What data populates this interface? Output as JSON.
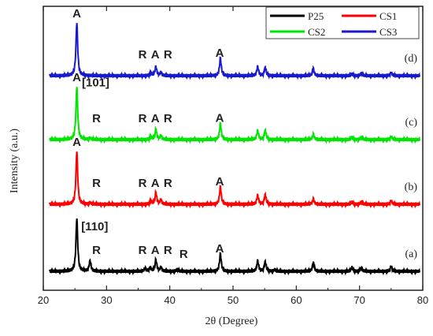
{
  "chart_data": {
    "type": "line",
    "xlabel": "2θ (Degree)",
    "ylabel": "Intensity (a.u.)",
    "xlim": [
      20,
      80
    ],
    "xticks": [
      20,
      30,
      40,
      50,
      60,
      70,
      80
    ],
    "grid": false,
    "legend_position": "top-right",
    "series": [
      {
        "name": "P25",
        "curve_label": "(a)",
        "color": "#000000",
        "peaks": [
          [
            25.3,
            1.0
          ],
          [
            27.4,
            0.2
          ],
          [
            36.1,
            0.06
          ],
          [
            36.9,
            0.07
          ],
          [
            37.8,
            0.22
          ],
          [
            38.6,
            0.07
          ],
          [
            41.2,
            0.04
          ],
          [
            48.0,
            0.33
          ],
          [
            53.9,
            0.2
          ],
          [
            55.1,
            0.18
          ],
          [
            56.6,
            0.03
          ],
          [
            62.7,
            0.16
          ],
          [
            68.8,
            0.07
          ],
          [
            70.3,
            0.07
          ],
          [
            75.0,
            0.1
          ]
        ]
      },
      {
        "name": "CS1",
        "curve_label": "(b)",
        "color": "#ff0000",
        "peaks": [
          [
            25.3,
            1.0
          ],
          [
            27.4,
            0.03
          ],
          [
            37.0,
            0.07
          ],
          [
            37.8,
            0.22
          ],
          [
            38.6,
            0.08
          ],
          [
            48.0,
            0.33
          ],
          [
            53.9,
            0.17
          ],
          [
            55.1,
            0.18
          ],
          [
            62.7,
            0.1
          ],
          [
            68.8,
            0.04
          ],
          [
            70.3,
            0.05
          ],
          [
            75.0,
            0.07
          ]
        ]
      },
      {
        "name": "CS2",
        "curve_label": "(c)",
        "color": "#00e600",
        "peaks": [
          [
            25.3,
            1.0
          ],
          [
            27.4,
            0.03
          ],
          [
            37.0,
            0.06
          ],
          [
            37.8,
            0.19
          ],
          [
            38.6,
            0.07
          ],
          [
            48.0,
            0.3
          ],
          [
            53.9,
            0.17
          ],
          [
            55.1,
            0.17
          ],
          [
            62.7,
            0.1
          ],
          [
            68.8,
            0.04
          ],
          [
            70.3,
            0.05
          ],
          [
            75.0,
            0.06
          ]
        ]
      },
      {
        "name": "CS3",
        "curve_label": "(d)",
        "color": "#1a1acd",
        "peaks": [
          [
            25.3,
            1.0
          ],
          [
            37.0,
            0.06
          ],
          [
            37.8,
            0.17
          ],
          [
            38.6,
            0.06
          ],
          [
            48.0,
            0.33
          ],
          [
            53.9,
            0.17
          ],
          [
            55.1,
            0.15
          ],
          [
            62.7,
            0.13
          ],
          [
            68.8,
            0.03
          ],
          [
            70.3,
            0.05
          ],
          [
            75.0,
            0.06
          ]
        ]
      }
    ],
    "annotations": [
      {
        "series": "CS3",
        "text": "A",
        "x": 25.3
      },
      {
        "series": "CS3",
        "text": "[101]",
        "x": 27.5
      },
      {
        "series": "CS3",
        "text": "R",
        "x": 35.7
      },
      {
        "series": "CS3",
        "text": "A",
        "x": 37.7
      },
      {
        "series": "CS3",
        "text": "R",
        "x": 39.7
      },
      {
        "series": "CS3",
        "text": "A",
        "x": 47.9
      },
      {
        "series": "CS2",
        "text": "A",
        "x": 25.3
      },
      {
        "series": "CS2",
        "text": "R",
        "x": 28.4
      },
      {
        "series": "CS2",
        "text": "R",
        "x": 35.7
      },
      {
        "series": "CS2",
        "text": "A",
        "x": 37.7
      },
      {
        "series": "CS2",
        "text": "R",
        "x": 39.7
      },
      {
        "series": "CS2",
        "text": "A",
        "x": 47.9
      },
      {
        "series": "CS1",
        "text": "A",
        "x": 25.3
      },
      {
        "series": "CS1",
        "text": "R",
        "x": 28.4
      },
      {
        "series": "CS1",
        "text": "R",
        "x": 35.7
      },
      {
        "series": "CS1",
        "text": "A",
        "x": 37.7
      },
      {
        "series": "CS1",
        "text": "R",
        "x": 39.7
      },
      {
        "series": "CS1",
        "text": "A",
        "x": 47.9
      },
      {
        "series": "P25",
        "text": "[110]",
        "x": 27.4
      },
      {
        "series": "P25",
        "text": "R",
        "x": 28.4
      },
      {
        "series": "P25",
        "text": "R",
        "x": 35.7
      },
      {
        "series": "P25",
        "text": "A",
        "x": 37.7
      },
      {
        "series": "P25",
        "text": "R",
        "x": 39.7
      },
      {
        "series": "P25",
        "text": "R",
        "x": 42.2
      },
      {
        "series": "P25",
        "text": "A",
        "x": 47.9
      }
    ]
  }
}
